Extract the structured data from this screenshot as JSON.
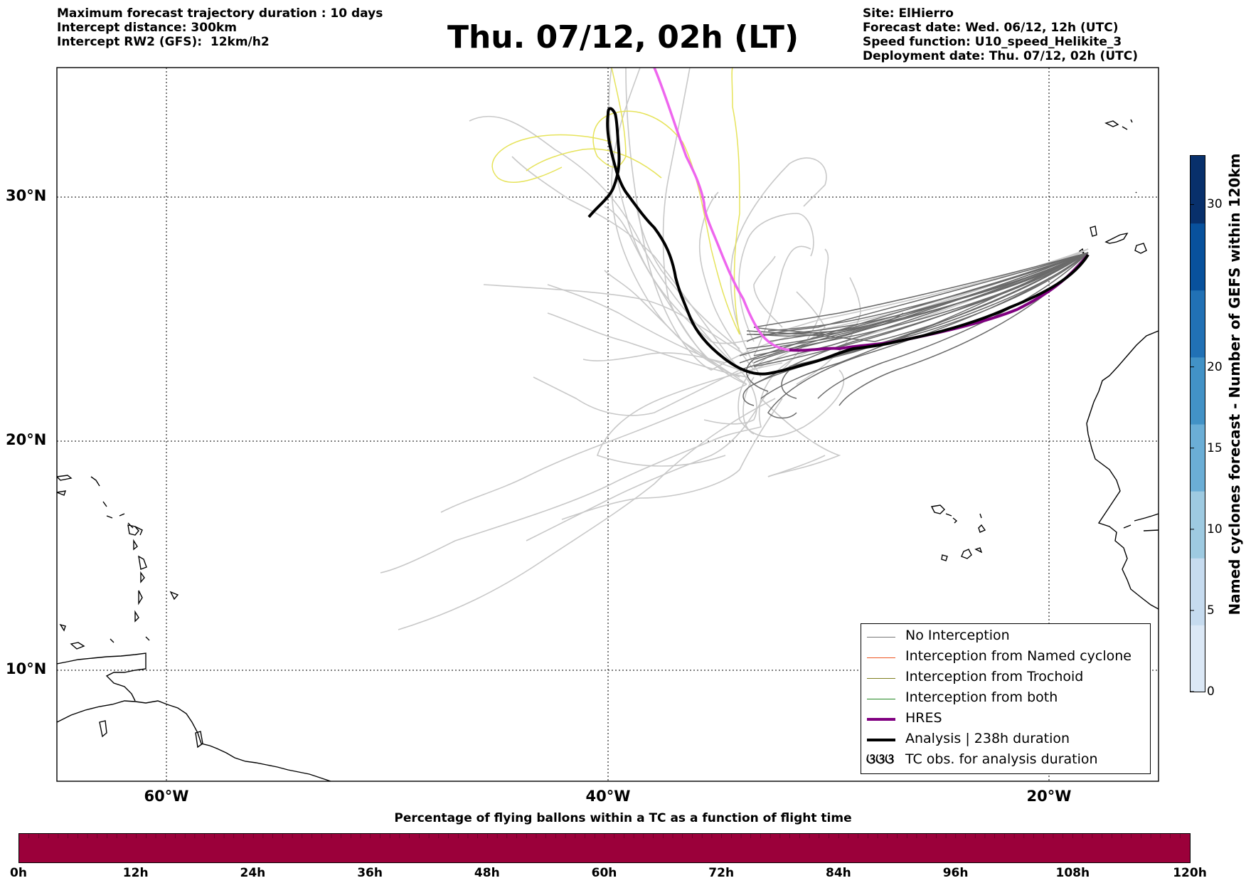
{
  "header": {
    "left_lines": [
      "Maximum forecast trajectory duration : 10 days",
      "Intercept distance: 300km",
      "Intercept RW2 (GFS):  12km/h2"
    ],
    "title": "Thu. 07/12, 02h (LT)",
    "right_lines": [
      "Site: ElHierro",
      "Forecast date: Wed. 06/12, 12h (UTC)",
      "Speed function: U10_speed_Helikite_3",
      "Deployment date: Thu. 07/12, 02h (UTC)"
    ]
  },
  "map": {
    "lat_labels": [
      "30°N",
      "20°N",
      "10°N"
    ],
    "lon_labels": [
      "60°W",
      "40°W",
      "20°W"
    ],
    "colors": {
      "no_interception": "#6a6a6a",
      "ensemble_light": "#c8c8c8",
      "yellow_tracks": "#e6e35a",
      "hres": "#800080",
      "hres_highlight": "#ee66ee",
      "analysis": "#000000",
      "named_cyclone": "#ee5522",
      "trochoid": "#808020",
      "both": "#228822"
    }
  },
  "legend": {
    "items": [
      {
        "label": "No Interception",
        "color": "#777777",
        "width": 1
      },
      {
        "label": "Interception from Named cyclone",
        "color": "#ee5522",
        "width": 1
      },
      {
        "label": "Interception from Trochoid",
        "color": "#808020",
        "width": 1
      },
      {
        "label": "Interception from both",
        "color": "#228822",
        "width": 1
      },
      {
        "label": "HRES",
        "color": "#800080",
        "width": 4
      },
      {
        "label": "Analysis | 238h duration",
        "color": "#000000",
        "width": 4
      }
    ],
    "tc_symbol": "ଓଓଓ",
    "tc_label": "TC obs. for analysis duration"
  },
  "colorbar": {
    "label": "Named cyclones forecast - Number of GEFS within 120km",
    "ticks": [
      "0",
      "5",
      "10",
      "15",
      "20",
      "30"
    ],
    "tick_values": [
      0,
      5,
      10,
      15,
      20,
      30
    ],
    "max": 33,
    "colors": [
      "#dbe8f6",
      "#c6dbef",
      "#9ecae1",
      "#6baed6",
      "#4292c6",
      "#2171b5",
      "#08519c",
      "#08306b"
    ]
  },
  "bottom_bar": {
    "title": "Percentage of flying ballons within a TC as a function of flight time",
    "color": "#9b003a",
    "ticks": [
      "0h",
      "12h",
      "24h",
      "36h",
      "48h",
      "60h",
      "72h",
      "84h",
      "96h",
      "108h",
      "120h"
    ]
  }
}
